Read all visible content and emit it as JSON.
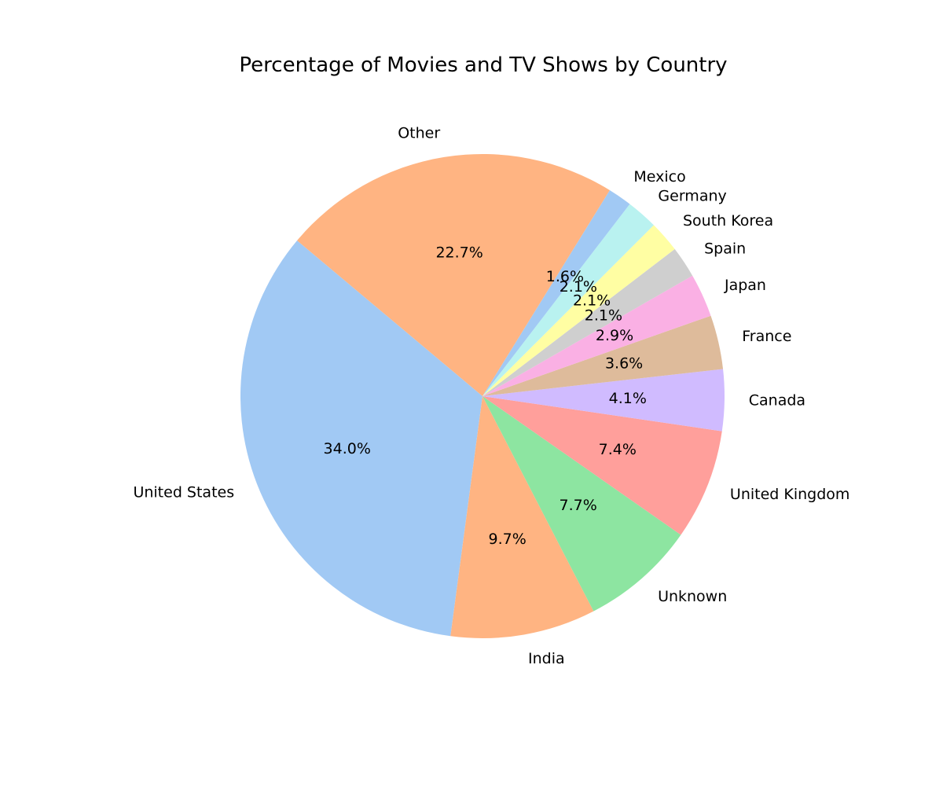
{
  "chart_data": {
    "type": "pie",
    "title": "Percentage of Movies and TV Shows by Country",
    "slices": [
      {
        "label": "United States",
        "value": 34.0,
        "pct_label": "34.0%",
        "color": "#a1c9f4"
      },
      {
        "label": "India",
        "value": 9.7,
        "pct_label": "9.7%",
        "color": "#ffb482"
      },
      {
        "label": "Unknown",
        "value": 7.7,
        "pct_label": "7.7%",
        "color": "#8de5a1"
      },
      {
        "label": "United Kingdom",
        "value": 7.4,
        "pct_label": "7.4%",
        "color": "#ff9f9b"
      },
      {
        "label": "Canada",
        "value": 4.1,
        "pct_label": "4.1%",
        "color": "#d0bbff"
      },
      {
        "label": "France",
        "value": 3.6,
        "pct_label": "3.6%",
        "color": "#debb9b"
      },
      {
        "label": "Japan",
        "value": 2.9,
        "pct_label": "2.9%",
        "color": "#fab0e4"
      },
      {
        "label": "Spain",
        "value": 2.1,
        "pct_label": "2.1%",
        "color": "#cfcfcf"
      },
      {
        "label": "South Korea",
        "value": 2.1,
        "pct_label": "2.1%",
        "color": "#fffea3"
      },
      {
        "label": "Germany",
        "value": 2.1,
        "pct_label": "2.1%",
        "color": "#b9f2f0"
      },
      {
        "label": "Mexico",
        "value": 1.6,
        "pct_label": "1.6%",
        "color": "#a1c9f4"
      },
      {
        "label": "Other",
        "value": 22.7,
        "pct_label": "22.7%",
        "color": "#ffb482"
      }
    ],
    "start_angle_deg": 140,
    "direction": "counterclockwise",
    "legend": "none"
  }
}
